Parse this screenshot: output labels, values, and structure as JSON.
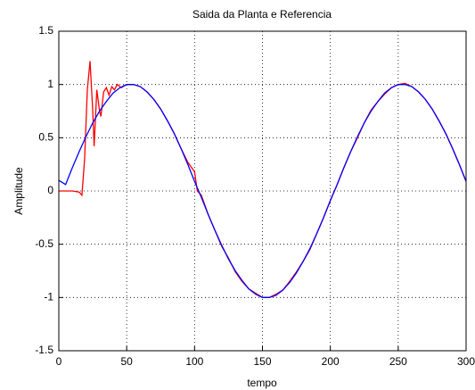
{
  "chart_data": {
    "type": "line",
    "title": "Saida da Planta e Referencia",
    "x_label": "tempo",
    "y_label": "Amplitude",
    "xlim": [
      0,
      300
    ],
    "ylim": [
      -1.5,
      1.5
    ],
    "xticks": [
      0,
      50,
      100,
      150,
      200,
      250,
      300
    ],
    "yticks": [
      -1.5,
      -1,
      -0.5,
      0,
      0.5,
      1,
      1.5
    ],
    "grid": true,
    "series": [
      {
        "color": "#ff0000",
        "x": [
          0,
          5,
          10,
          15,
          17,
          19,
          21,
          23,
          25,
          26,
          28,
          30,
          31,
          33,
          35,
          37,
          39,
          41,
          43,
          46,
          50,
          55,
          60,
          65,
          70,
          75,
          80,
          85,
          90,
          95,
          100,
          102,
          105,
          110,
          115,
          120,
          125,
          130,
          135,
          140,
          145,
          150,
          155,
          160,
          165,
          170,
          175,
          180,
          185,
          190,
          195,
          200,
          205,
          210,
          215,
          220,
          225,
          230,
          235,
          240,
          245,
          250,
          255,
          260,
          265,
          270,
          275,
          280,
          285,
          290,
          295,
          300
        ],
        "values": [
          0,
          0,
          0,
          -0.01,
          -0.04,
          0.3,
          0.95,
          1.22,
          0.75,
          0.42,
          0.95,
          0.75,
          0.7,
          0.93,
          0.97,
          0.9,
          0.98,
          0.95,
          1.0,
          0.97,
          1.0,
          1.0,
          0.98,
          0.93,
          0.86,
          0.77,
          0.66,
          0.54,
          0.4,
          0.27,
          0.18,
          0.0,
          -0.04,
          -0.22,
          -0.37,
          -0.52,
          -0.63,
          -0.76,
          -0.85,
          -0.92,
          -0.96,
          -1.0,
          -1.0,
          -0.97,
          -0.93,
          -0.85,
          -0.76,
          -0.66,
          -0.55,
          -0.4,
          -0.25,
          -0.09,
          0.06,
          0.22,
          0.37,
          0.5,
          0.64,
          0.76,
          0.84,
          0.91,
          0.97,
          1.0,
          1.01,
          0.98,
          0.93,
          0.86,
          0.77,
          0.66,
          0.54,
          0.4,
          0.25,
          0.09
        ]
      },
      {
        "color": "#0000ff",
        "x": [
          0,
          5,
          10,
          15,
          20,
          25,
          30,
          35,
          40,
          45,
          50,
          55,
          60,
          65,
          70,
          75,
          80,
          85,
          90,
          95,
          100,
          105,
          110,
          115,
          120,
          125,
          130,
          135,
          140,
          145,
          150,
          155,
          160,
          165,
          170,
          175,
          180,
          185,
          190,
          195,
          200,
          205,
          210,
          215,
          220,
          225,
          230,
          235,
          240,
          245,
          250,
          255,
          260,
          265,
          270,
          275,
          280,
          285,
          290,
          295,
          300
        ],
        "values": [
          0.1,
          0.06,
          0.22,
          0.37,
          0.51,
          0.64,
          0.75,
          0.84,
          0.92,
          0.97,
          1.0,
          1.0,
          0.98,
          0.93,
          0.86,
          0.77,
          0.66,
          0.54,
          0.4,
          0.25,
          0.09,
          -0.06,
          -0.22,
          -0.37,
          -0.51,
          -0.64,
          -0.75,
          -0.84,
          -0.92,
          -0.97,
          -1.0,
          -1.0,
          -0.98,
          -0.93,
          -0.86,
          -0.77,
          -0.66,
          -0.54,
          -0.4,
          -0.25,
          -0.09,
          0.06,
          0.22,
          0.37,
          0.51,
          0.64,
          0.75,
          0.84,
          0.92,
          0.97,
          1.0,
          1.0,
          0.98,
          0.93,
          0.86,
          0.77,
          0.66,
          0.54,
          0.4,
          0.25,
          0.09
        ]
      }
    ]
  }
}
